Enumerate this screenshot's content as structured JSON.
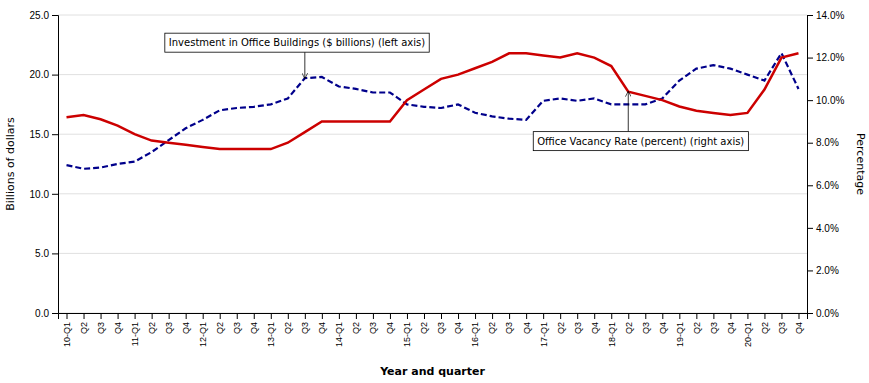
{
  "chart_data": {
    "type": "line",
    "xlabel": "Year and quarter",
    "ylabel": "Billions of dollars",
    "y2label": "Percentage",
    "categories": [
      "10-Q1",
      "Q2",
      "Q3",
      "Q4",
      "11-Q1",
      "Q2",
      "Q3",
      "Q4",
      "12-Q1",
      "Q2",
      "Q3",
      "Q4",
      "13-Q1",
      "Q2",
      "Q3",
      "Q4",
      "14-Q1",
      "Q2",
      "Q3",
      "Q4",
      "15-Q1",
      "Q2",
      "Q3",
      "Q4",
      "16-Q1",
      "Q2",
      "Q3",
      "Q4",
      "17-Q1",
      "Q2",
      "Q3",
      "Q4",
      "18-Q1",
      "Q2",
      "Q3",
      "Q4",
      "19-Q1",
      "Q2",
      "Q3",
      "Q4",
      "20-Q1",
      "Q2",
      "Q3",
      "Q4"
    ],
    "series": [
      {
        "color": "#00008B",
        "line_style": "dashed",
        "values": [
          12.4,
          12.1,
          12.2,
          12.5,
          12.7,
          13.5,
          14.5,
          15.5,
          16.2,
          17.0,
          17.2,
          17.3,
          17.5,
          18.0,
          19.7,
          19.8,
          19.0,
          18.8,
          18.5,
          18.5,
          17.5,
          17.3,
          17.2,
          17.5,
          16.8,
          16.5,
          16.3,
          16.2,
          17.8,
          18.0,
          17.8,
          18.0,
          17.5,
          17.5,
          17.5,
          18.0,
          19.5,
          20.5,
          20.8,
          20.5,
          20.0,
          19.5,
          21.8,
          18.8
        ]
      },
      {
        "color": "#cc0000",
        "line_style": "solid",
        "axis": "y2",
        "values": [
          9.2,
          9.3,
          9.1,
          8.8,
          8.4,
          8.1,
          8.0,
          7.9,
          7.8,
          7.7,
          7.7,
          7.7,
          7.7,
          8.0,
          8.5,
          9.0,
          9.0,
          9.0,
          9.0,
          9.0,
          10.0,
          10.5,
          11.0,
          11.2,
          11.5,
          11.8,
          12.2,
          12.2,
          12.1,
          12.0,
          12.2,
          12.0,
          11.6,
          10.4,
          10.2,
          10.0,
          9.7,
          9.5,
          9.4,
          9.3,
          9.4,
          10.5,
          12.0,
          12.2
        ]
      }
    ],
    "ylim": [
      0,
      25
    ],
    "yticks": [
      {
        "value": 0,
        "label": "0.0"
      },
      {
        "value": 5.0,
        "label": "5.0"
      },
      {
        "value": 10.0,
        "label": "10.0"
      },
      {
        "value": 15.0,
        "label": "15.0"
      },
      {
        "value": 20.0,
        "label": "20.0"
      },
      {
        "value": 25.0,
        "label": "25.0"
      }
    ],
    "y2lim": [
      0,
      14
    ],
    "y2ticks": [
      {
        "value": 0,
        "label": "0.0%"
      },
      {
        "value": 2,
        "label": "2.0%"
      },
      {
        "value": 4,
        "label": "4.0%"
      },
      {
        "value": 6,
        "label": "6.0%"
      },
      {
        "value": 8,
        "label": "8.0%"
      },
      {
        "value": 10,
        "label": "10.0%"
      },
      {
        "value": 12,
        "label": "12.0%"
      },
      {
        "value": 14,
        "label": "14.0%"
      }
    ],
    "grid": true,
    "annotations": [
      {
        "text": "Investment in Office Buildings ($ billions) (left axis)",
        "x": 14,
        "y": 19.7
      },
      {
        "text": "Office Vacancy Rate (percent) (right axis)",
        "x": 33,
        "y": 10.4,
        "axis": "y2"
      }
    ]
  }
}
